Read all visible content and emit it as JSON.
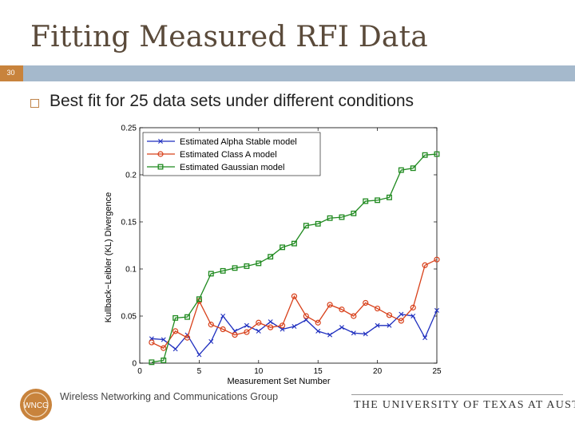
{
  "slide": {
    "title": "Fitting Measured RFI Data",
    "number": "30",
    "bullet": "Best fit for 25 data sets under different conditions"
  },
  "colors": {
    "title": "#5a4a3a",
    "bar": "#a5b9cc",
    "number_box": "#c8833c",
    "bullet": "#c08449",
    "logo": "#c8833c"
  },
  "icons": {
    "bullet": "hollow-square-icon",
    "logo": "wncg-logo-icon"
  },
  "footer": {
    "org": "Wireless Networking and Communications Group",
    "logo_text": "WNCG",
    "university": "THE UNIVERSITY OF TEXAS AT AUSTIN"
  },
  "chart_data": {
    "type": "line",
    "xlabel": "Measurement Set Number",
    "ylabel": "Kullback−Leibler (KL) Divergence",
    "xlim": [
      0,
      25
    ],
    "ylim": [
      0,
      0.25
    ],
    "xticks": [
      0,
      5,
      10,
      15,
      20,
      25
    ],
    "yticks": [
      0,
      0.05,
      0.1,
      0.15,
      0.2,
      0.25
    ],
    "ytick_labels": [
      "0",
      "0.05",
      "0.1",
      "0.15",
      "0.2",
      "0.25"
    ],
    "grid": false,
    "legend_position": "top-left",
    "x": [
      1,
      2,
      3,
      4,
      5,
      6,
      7,
      8,
      9,
      10,
      11,
      12,
      13,
      14,
      15,
      16,
      17,
      18,
      19,
      20,
      21,
      22,
      23,
      24,
      25
    ],
    "series": [
      {
        "name": "Estimated Alpha Stable model",
        "color": "#1f2fbf",
        "marker": "x",
        "values": [
          0.026,
          0.025,
          0.015,
          0.03,
          0.009,
          0.023,
          0.05,
          0.034,
          0.04,
          0.034,
          0.044,
          0.036,
          0.039,
          0.046,
          0.034,
          0.03,
          0.038,
          0.032,
          0.031,
          0.04,
          0.04,
          0.052,
          0.05,
          0.027,
          0.056
        ]
      },
      {
        "name": "Estimated Class A model",
        "color": "#d8401a",
        "marker": "circle",
        "values": [
          0.022,
          0.016,
          0.034,
          0.027,
          0.066,
          0.041,
          0.036,
          0.03,
          0.033,
          0.043,
          0.038,
          0.04,
          0.071,
          0.05,
          0.043,
          0.062,
          0.057,
          0.05,
          0.064,
          0.058,
          0.051,
          0.045,
          0.059,
          0.104,
          0.11
        ]
      },
      {
        "name": "Estimated Gaussian model",
        "color": "#1f8a1f",
        "marker": "square",
        "values": [
          0.001,
          0.003,
          0.048,
          0.049,
          0.068,
          0.095,
          0.098,
          0.101,
          0.103,
          0.106,
          0.113,
          0.123,
          0.127,
          0.146,
          0.148,
          0.154,
          0.155,
          0.159,
          0.172,
          0.173,
          0.176,
          0.205,
          0.207,
          0.221,
          0.222
        ]
      }
    ]
  }
}
